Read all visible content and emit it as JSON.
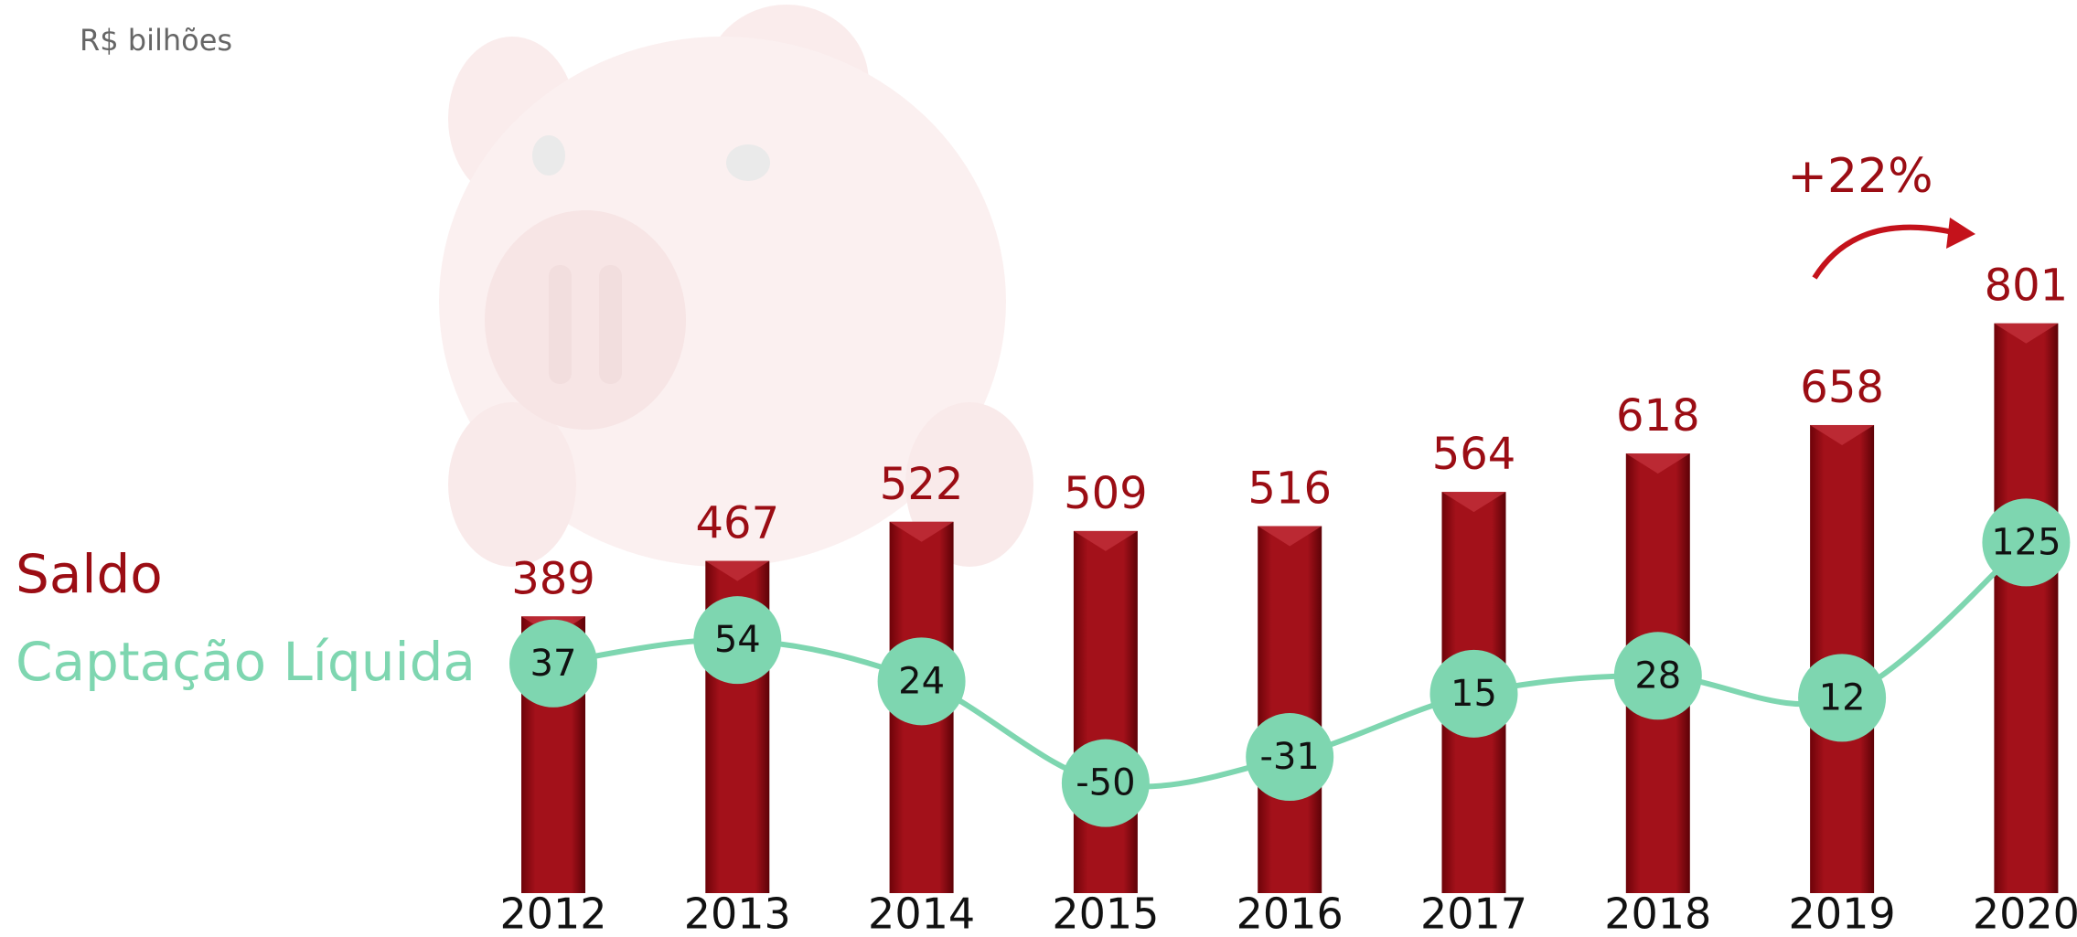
{
  "chart_data": {
    "type": "bar",
    "subtitle": "R$ bilhões",
    "annotation": "+22%",
    "categories": [
      "2012",
      "2013",
      "2014",
      "2015",
      "2016",
      "2017",
      "2018",
      "2019",
      "2020"
    ],
    "series": [
      {
        "name": "Saldo",
        "color": "#9b0d14",
        "values": [
          389,
          467,
          522,
          509,
          516,
          564,
          618,
          658,
          801
        ]
      },
      {
        "name": "Captação Líquida",
        "color": "#7ed6b0",
        "type": "line",
        "axis": "y2",
        "values": [
          37,
          54,
          24,
          -50,
          -31,
          15,
          28,
          12,
          125
        ]
      }
    ],
    "ylim": [
      0,
      870
    ],
    "y2lim": [
      -130,
      320
    ]
  }
}
